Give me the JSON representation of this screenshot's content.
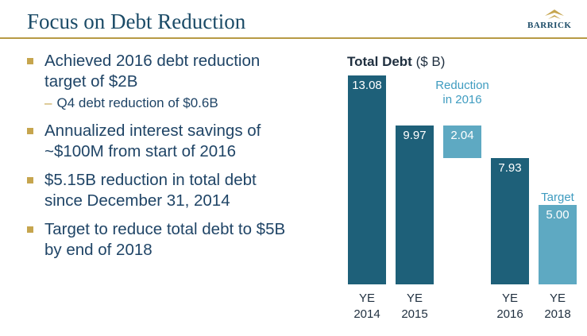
{
  "header": {
    "title": "Focus on Debt Reduction",
    "logo": "BARRICK"
  },
  "bullets": [
    {
      "text": "Achieved 2016 debt reduction target of $2B",
      "sub": [
        "Q4 debt reduction of $0.6B"
      ]
    },
    {
      "text": "Annualized interest savings of ~$100M from start of 2016",
      "sub": []
    },
    {
      "text": "$5.15B reduction in total debt since December 31, 2014",
      "sub": []
    },
    {
      "text": "Target to reduce total debt to $5B by end of 2018",
      "sub": []
    }
  ],
  "chart_data": {
    "type": "waterfall",
    "title": "Total Debt",
    "subtitle": "($ B)",
    "categories": [
      "YE 2014",
      "YE 2015",
      null,
      "YE 2016",
      "YE 2018"
    ],
    "values": [
      13.08,
      9.97,
      2.04,
      7.93,
      5
    ],
    "value_labels": [
      "13.08",
      "9.97",
      "2.04",
      "7.93",
      "5.00"
    ],
    "colors": [
      "#1e6079",
      "#1e6079",
      "#5ea9c2",
      "#1e6079",
      "#5ea9c2"
    ],
    "kinds": [
      "total",
      "total",
      "decrease",
      "total",
      "total"
    ],
    "annotations": [
      "Reduction in 2016",
      "Target"
    ]
  }
}
